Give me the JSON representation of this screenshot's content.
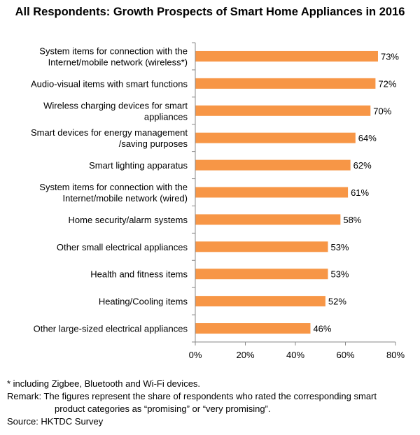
{
  "chart_data": {
    "type": "bar",
    "orientation": "horizontal",
    "title": "All Respondents: Growth Prospects of Smart Home Appliances in 2016",
    "categories": [
      [
        "System items for connection with the",
        "Internet/mobile network (wireless*)"
      ],
      [
        "Audio-visual items with smart functions"
      ],
      [
        "Wireless charging devices for smart",
        "appliances"
      ],
      [
        "Smart devices for energy management",
        "/saving purposes"
      ],
      [
        "Smart lighting apparatus"
      ],
      [
        "System items for connection with the",
        "Internet/mobile network (wired)"
      ],
      [
        "Home security/alarm systems"
      ],
      [
        "Other small electrical appliances"
      ],
      [
        "Health and fitness items"
      ],
      [
        "Heating/Cooling items"
      ],
      [
        "Other large-sized electrical appliances"
      ]
    ],
    "values": [
      73,
      72,
      70,
      64,
      62,
      61,
      58,
      53,
      53,
      52,
      46
    ],
    "value_labels": [
      "73%",
      "72%",
      "70%",
      "64%",
      "62%",
      "61%",
      "58%",
      "53%",
      "53%",
      "52%",
      "46%"
    ],
    "xlim": [
      0,
      80
    ],
    "x_ticks": [
      0,
      20,
      40,
      60,
      80
    ],
    "x_tick_labels": [
      "0%",
      "20%",
      "40%",
      "60%",
      "80%"
    ],
    "bar_color": "#F79646",
    "grid": false
  },
  "notes": {
    "footnote": "* including Zigbee, Bluetooth and Wi-Fi devices.",
    "remark": "Remark: The figures represent the share of respondents who rated the corresponding smart",
    "remark_cont": "product categories as “promising” or “very promising”.",
    "source": "Source: HKTDC Survey"
  }
}
